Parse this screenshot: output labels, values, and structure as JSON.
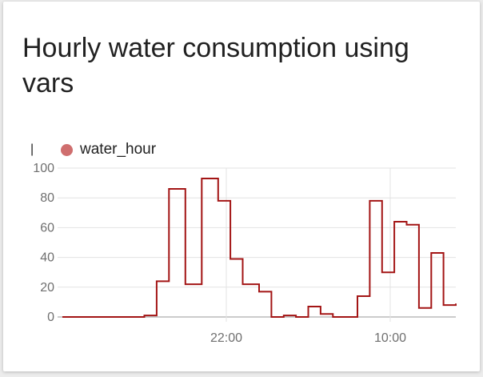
{
  "card": {
    "title": "Hourly water consumption using vars"
  },
  "colors": {
    "series_line": "#a31515",
    "legend_dot": "#cf6e6e",
    "grid": "#e3e3e3",
    "axis": "#9a9a9a"
  },
  "chart_data": {
    "type": "line",
    "step": true,
    "title": "",
    "ylabel": "|",
    "xlabel": "",
    "legend": [
      "water_hour"
    ],
    "ylim": [
      0,
      100
    ],
    "yticks": [
      0,
      20,
      40,
      60,
      80,
      100
    ],
    "xlim": [
      0,
      48
    ],
    "xticks": [
      {
        "x": 20,
        "label": "22:00"
      },
      {
        "x": 40,
        "label": "10:00"
      }
    ],
    "series": [
      {
        "name": "water_hour",
        "x": [
          0,
          2,
          4,
          6,
          8,
          10,
          11.5,
          13,
          15,
          17,
          19,
          20.5,
          22,
          24,
          25.5,
          27,
          28.5,
          30,
          31.5,
          33,
          34.5,
          36,
          37.5,
          39,
          40.5,
          42,
          43.5,
          45,
          46.5,
          48
        ],
        "values": [
          0,
          0,
          0,
          0,
          0,
          1,
          24,
          86,
          22,
          93,
          78,
          39,
          22,
          17,
          0,
          1,
          0,
          7,
          2,
          0,
          0,
          14,
          78,
          30,
          64,
          62,
          6,
          43,
          8,
          9
        ]
      }
    ]
  }
}
